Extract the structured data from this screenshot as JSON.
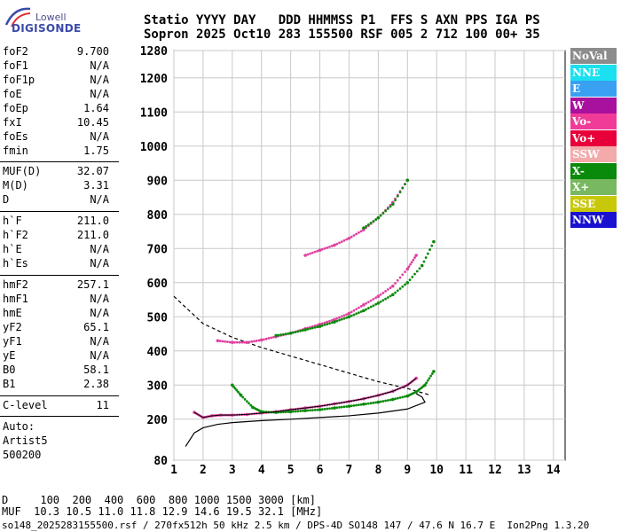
{
  "logo": {
    "line1": "Lowell",
    "line2": "DIGISONDE"
  },
  "header": {
    "row1": "Statio YYYY DAY   DDD HHMMSS P1  FFS S AXN PPS IGA PS",
    "row2": "Sopron 2025 Oct10 283 155500 RSF 005 2 712 100 00+ 35"
  },
  "params_group1": [
    {
      "name": "foF2",
      "value": "9.700"
    },
    {
      "name": "foF1",
      "value": "N/A"
    },
    {
      "name": "foF1p",
      "value": "N/A"
    },
    {
      "name": "foE",
      "value": "N/A"
    },
    {
      "name": "foEp",
      "value": "1.64"
    },
    {
      "name": "fxI",
      "value": "10.45"
    },
    {
      "name": "foEs",
      "value": "N/A"
    },
    {
      "name": "fmin",
      "value": "1.75"
    }
  ],
  "params_group2": [
    {
      "name": "MUF(D)",
      "value": "32.07"
    },
    {
      "name": "M(D)",
      "value": "3.31"
    },
    {
      "name": "D",
      "value": "N/A"
    }
  ],
  "params_group3": [
    {
      "name": "h`F",
      "value": "211.0"
    },
    {
      "name": "h`F2",
      "value": "211.0"
    },
    {
      "name": "h`E",
      "value": "N/A"
    },
    {
      "name": "h`Es",
      "value": "N/A"
    }
  ],
  "params_group4": [
    {
      "name": "hmF2",
      "value": "257.1"
    },
    {
      "name": "hmF1",
      "value": "N/A"
    },
    {
      "name": "hmE",
      "value": "N/A"
    },
    {
      "name": "yF2",
      "value": "65.1"
    },
    {
      "name": "yF1",
      "value": "N/A"
    },
    {
      "name": "yE",
      "value": "N/A"
    },
    {
      "name": "B0",
      "value": "58.1"
    },
    {
      "name": "B1",
      "value": "2.38"
    }
  ],
  "params_group5": [
    {
      "name": "C-level",
      "value": "11"
    }
  ],
  "auto": {
    "label": "Auto:",
    "line1": "Artist5",
    "line2": "500200"
  },
  "legend": [
    {
      "label": "NoVal",
      "color": "#8c8c8c"
    },
    {
      "label": "NNE",
      "color": "#1ae0f0"
    },
    {
      "label": "E",
      "color": "#3aa0f2"
    },
    {
      "label": "W",
      "color": "#a8109e"
    },
    {
      "label": "Vo-",
      "color": "#f03c98"
    },
    {
      "label": "Vo+",
      "color": "#e8003a"
    },
    {
      "label": "SSW",
      "color": "#f2aaaa"
    },
    {
      "label": "X-",
      "color": "#0a8a0a"
    },
    {
      "label": "X+",
      "color": "#78b860"
    },
    {
      "label": "SSE",
      "color": "#c8c80a"
    },
    {
      "label": "NNW",
      "color": "#1a12d0"
    }
  ],
  "bottom": {
    "row_d": "D     100  200  400  600  800 1000 1500 3000 [km]",
    "row_muf": "MUF  10.3 10.5 11.0 11.8 12.9 14.6 19.5 32.1 [MHz]",
    "footer": "so148_2025283155500.rsf / 270fx512h 50 kHz 2.5 km / DPS-4D SO148 147 / 47.6 N 16.7 E  Ion2Png 1.3.20"
  },
  "chart_data": {
    "type": "scatter",
    "x_ticks": [
      "1",
      "2",
      "3",
      "4",
      "5",
      "6",
      "7",
      "8",
      "9",
      "10",
      "11",
      "12",
      "13",
      "14"
    ],
    "y_ticks": [
      "80",
      "200",
      "300",
      "400",
      "500",
      "600",
      "700",
      "800",
      "900",
      "1000",
      "1100",
      "1200",
      "1280"
    ],
    "xlim": [
      1,
      14.4
    ],
    "ylim": [
      80,
      1280
    ],
    "grid": true,
    "series": [
      {
        "name": "Vo-",
        "color": "#e040a0",
        "x": [
          1.7,
          2.0,
          2.3,
          2.6,
          3.0,
          3.5,
          4.0,
          4.5,
          5.0,
          5.5,
          6.0,
          6.5,
          7.0,
          7.5,
          8.0,
          8.5,
          9.0,
          9.3
        ],
        "y": [
          220,
          205,
          210,
          212,
          212,
          214,
          218,
          222,
          228,
          233,
          238,
          245,
          252,
          260,
          270,
          282,
          300,
          320
        ]
      },
      {
        "name": "X-",
        "color": "#0a8a0a",
        "x": [
          3.0,
          3.3,
          3.7,
          4.0,
          4.5,
          5.0,
          5.5,
          6.0,
          6.5,
          7.0,
          7.5,
          8.0,
          8.5,
          9.0,
          9.3,
          9.6,
          9.9
        ],
        "y": [
          300,
          270,
          235,
          222,
          220,
          222,
          225,
          228,
          233,
          238,
          244,
          250,
          258,
          268,
          280,
          300,
          340
        ]
      },
      {
        "name": "Vo- 2nd hop",
        "color": "#e040a0",
        "x": [
          2.5,
          3.0,
          3.5,
          4.0,
          4.5,
          5.0,
          5.5,
          6.0,
          6.5,
          7.0,
          7.5,
          8.0,
          8.5,
          9.0,
          9.3
        ],
        "y": [
          430,
          425,
          425,
          432,
          442,
          452,
          465,
          478,
          492,
          510,
          535,
          560,
          590,
          640,
          680
        ]
      },
      {
        "name": "X- 2nd hop",
        "color": "#0a8a0a",
        "x": [
          4.5,
          5.0,
          5.5,
          6.0,
          6.5,
          7.0,
          7.5,
          8.0,
          8.5,
          9.0,
          9.5,
          9.9
        ],
        "y": [
          445,
          452,
          462,
          472,
          485,
          500,
          518,
          540,
          565,
          600,
          650,
          720
        ]
      },
      {
        "name": "Vo- 3rd hop",
        "color": "#e040a0",
        "x": [
          5.5,
          6.0,
          6.5,
          7.0,
          7.5,
          8.0,
          8.5,
          9.0
        ],
        "y": [
          680,
          695,
          710,
          730,
          755,
          790,
          835,
          900
        ]
      },
      {
        "name": "X- 3rd hop",
        "color": "#0a8a0a",
        "x": [
          7.5,
          8.0,
          8.5,
          9.0
        ],
        "y": [
          760,
          790,
          830,
          900
        ]
      }
    ],
    "profile_x": [
      1.4,
      1.7,
      2.0,
      2.5,
      3.0,
      4.0,
      5.0,
      6.0,
      7.0,
      8.0,
      9.0,
      9.6,
      9.5,
      9.3
    ],
    "profile_y": [
      120,
      160,
      175,
      185,
      190,
      196,
      200,
      205,
      210,
      218,
      230,
      250,
      265,
      275
    ],
    "muf_curve_x": [
      1.0,
      2.0,
      3.0,
      4.0,
      5.0,
      6.0,
      7.0,
      8.0,
      9.0,
      9.8
    ],
    "muf_curve_y": [
      560,
      480,
      440,
      410,
      385,
      360,
      335,
      310,
      290,
      270
    ]
  }
}
